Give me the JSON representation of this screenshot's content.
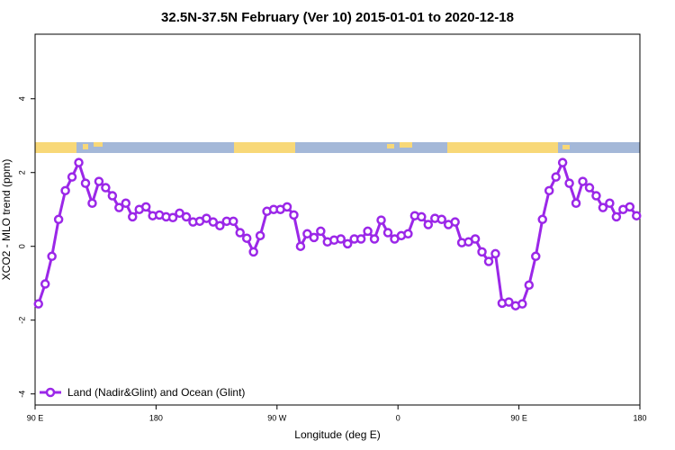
{
  "chart_data": {
    "type": "line",
    "title": "32.5N-37.5N February (Ver 10)   2015-01-01 to 2020-12-18",
    "x_label": "Longitude (deg E)",
    "y_label": "XCO2 - MLO trend (ppm)",
    "xlim": [
      90,
      540
    ],
    "ylim": [
      -4.3,
      5.75
    ],
    "xticks": [
      {
        "value": 90,
        "label": "90 E"
      },
      {
        "value": 180,
        "label": "180"
      },
      {
        "value": 270,
        "label": "90 W"
      },
      {
        "value": 360,
        "label": "0"
      },
      {
        "value": 450,
        "label": "90 E"
      },
      {
        "value": 540,
        "label": "180"
      }
    ],
    "yticks": [
      -4,
      -2,
      0,
      2,
      4
    ],
    "legend_position": "bottom-left",
    "series": [
      {
        "name": "Land (Nadir&Glint) and Ocean (Glint)",
        "color": "#9b27e8",
        "x": [
          92.5,
          97.5,
          102.5,
          107.5,
          112.5,
          117.5,
          122.5,
          127.5,
          132.5,
          137.5,
          142.5,
          147.5,
          152.5,
          157.5,
          162.5,
          167.5,
          172.5,
          177.5,
          182.5,
          187.5,
          192.5,
          197.5,
          202.5,
          207.5,
          212.5,
          217.5,
          222.5,
          227.5,
          232.5,
          237.5,
          242.5,
          247.5,
          252.5,
          257.5,
          262.5,
          267.5,
          272.5,
          277.5,
          282.5,
          287.5,
          292.5,
          297.5,
          302.5,
          307.5,
          312.5,
          317.5,
          322.5,
          327.5,
          332.5,
          337.5,
          342.5,
          347.5,
          352.5,
          357.5,
          362.5,
          367.5,
          372.5,
          377.5,
          382.5,
          387.5,
          392.5,
          397.5,
          402.5,
          407.5,
          412.5,
          417.5,
          422.5,
          427.5,
          432.5,
          437.5,
          442.5,
          447.5,
          452.5,
          457.5,
          462.5,
          467.5,
          472.5,
          477.5,
          482.5,
          487.5,
          492.5,
          497.5,
          502.5,
          507.5,
          512.5,
          517.5,
          522.5,
          527.5,
          532.5,
          537.5
        ],
        "values": [
          -1.56,
          -1.02,
          -0.27,
          0.73,
          1.51,
          1.88,
          2.27,
          1.71,
          1.17,
          1.76,
          1.59,
          1.37,
          1.05,
          1.17,
          0.8,
          1.0,
          1.07,
          0.83,
          0.85,
          0.8,
          0.78,
          0.9,
          0.8,
          0.66,
          0.68,
          0.76,
          0.66,
          0.56,
          0.68,
          0.68,
          0.37,
          0.22,
          -0.15,
          0.29,
          0.95,
          1.0,
          1.0,
          1.07,
          0.85,
          0.0,
          0.34,
          0.24,
          0.41,
          0.12,
          0.17,
          0.2,
          0.07,
          0.2,
          0.2,
          0.41,
          0.2,
          0.71,
          0.37,
          0.2,
          0.29,
          0.34,
          0.83,
          0.8,
          0.59,
          0.76,
          0.73,
          0.59,
          0.66,
          0.1,
          0.12,
          0.2,
          -0.15,
          -0.41,
          -0.2,
          -1.54,
          -1.51,
          -1.61,
          -1.56,
          -1.05,
          -0.27,
          0.73,
          1.51,
          1.88,
          2.27,
          1.71,
          1.17,
          1.76,
          1.59,
          1.37,
          1.05,
          1.17,
          0.8,
          1.0,
          1.07,
          0.83
        ]
      }
    ]
  }
}
